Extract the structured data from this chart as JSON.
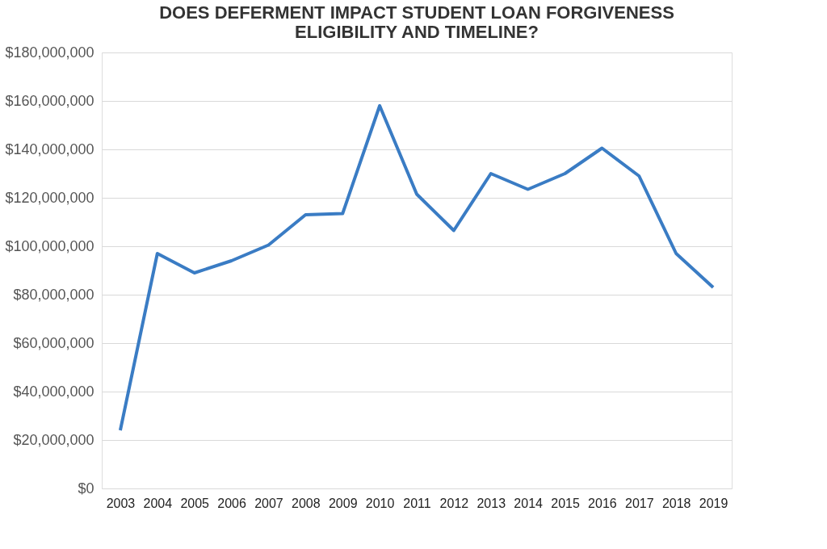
{
  "chart_data": {
    "type": "line",
    "title": [
      "DOES DEFERMENT IMPACT STUDENT LOAN FORGIVENESS",
      "ELIGIBILITY AND TIMELINE?"
    ],
    "categories": [
      "2003",
      "2004",
      "2005",
      "2006",
      "2007",
      "2008",
      "2009",
      "2010",
      "2011",
      "2012",
      "2013",
      "2014",
      "2015",
      "2016",
      "2017",
      "2018",
      "2019"
    ],
    "series": [
      {
        "color": "#3a7cc4",
        "values": [
          24000000,
          97000000,
          89000000,
          94000000,
          100500000,
          113000000,
          113500000,
          158000000,
          121500000,
          106500000,
          130000000,
          123500000,
          130000000,
          140500000,
          129000000,
          97000000,
          83000000
        ]
      }
    ],
    "ylim": [
      0,
      180000000
    ],
    "yticks": [
      {
        "value": 0,
        "label": "$0"
      },
      {
        "value": 20000000,
        "label": "$20,000,000"
      },
      {
        "value": 40000000,
        "label": "$40,000,000"
      },
      {
        "value": 60000000,
        "label": "$60,000,000"
      },
      {
        "value": 80000000,
        "label": "$80,000,000"
      },
      {
        "value": 100000000,
        "label": "$100,000,000"
      },
      {
        "value": 120000000,
        "label": "$120,000,000"
      },
      {
        "value": 140000000,
        "label": "$140,000,000"
      },
      {
        "value": 160000000,
        "label": "$160,000,000"
      },
      {
        "value": 180000000,
        "label": "$180,000,000"
      }
    ],
    "grid": "y",
    "marker": "none",
    "line_style": "solid"
  }
}
